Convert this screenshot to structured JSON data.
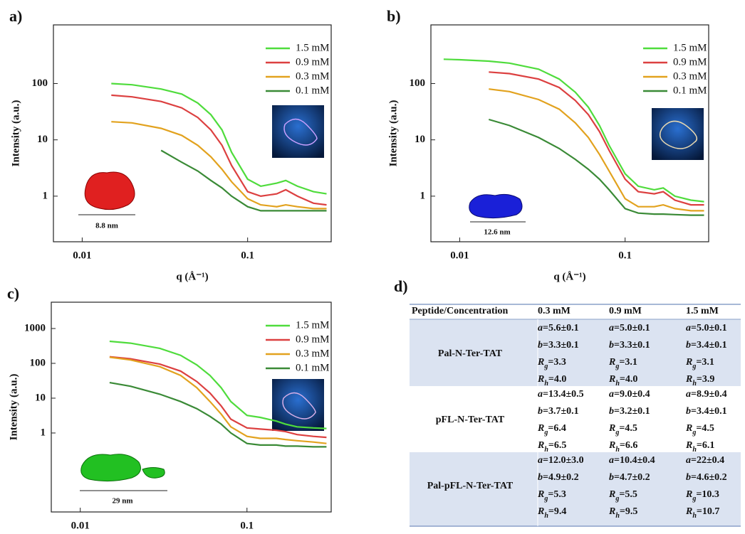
{
  "chart_data": [
    {
      "type": "line",
      "panel_label": "a)",
      "y_label": "Intensity (a.u.)",
      "x_label": "q (Å⁻¹)",
      "xscale": "log",
      "yscale": "log",
      "xlim": [
        0.0067,
        0.32
      ],
      "ylim": [
        0.155,
        1100
      ],
      "xticks": [
        0.01,
        0.1
      ],
      "yticks": [
        1,
        10,
        100
      ],
      "legend": "upper right",
      "annotations": [
        "8.8 nm"
      ],
      "x": [
        0.008,
        0.01,
        0.015,
        0.02,
        0.03,
        0.04,
        0.05,
        0.06,
        0.07,
        0.08,
        0.1,
        0.12,
        0.15,
        0.17,
        0.2,
        0.25,
        0.3
      ],
      "series": [
        {
          "name": "1.5 mM",
          "color": "#4fdc3c",
          "values": [
            null,
            null,
            100,
            95,
            80,
            65,
            45,
            28,
            15,
            6,
            2,
            1.5,
            1.7,
            1.9,
            1.5,
            1.2,
            1.1
          ]
        },
        {
          "name": "0.9 mM",
          "color": "#dc4040",
          "values": [
            null,
            null,
            62,
            58,
            48,
            37,
            25,
            15,
            8,
            3.5,
            1.2,
            1.0,
            1.1,
            1.3,
            1.0,
            0.75,
            0.7
          ]
        },
        {
          "name": "0.3 mM",
          "color": "#e2a21e",
          "values": [
            null,
            null,
            21,
            20,
            16,
            12,
            8,
            5,
            3,
            1.8,
            0.9,
            0.7,
            0.65,
            0.7,
            0.65,
            0.6,
            0.6
          ]
        },
        {
          "name": "0.1 mM",
          "color": "#3a8a36",
          "values": [
            null,
            null,
            null,
            null,
            6.5,
            4,
            2.8,
            1.9,
            1.4,
            1.0,
            0.65,
            0.55,
            0.55,
            0.55,
            0.55,
            0.55,
            0.55
          ]
        }
      ]
    },
    {
      "type": "line",
      "panel_label": "b)",
      "y_label": "Intensity (a.u.)",
      "x_label": "q (Å⁻¹)",
      "xscale": "log",
      "yscale": "log",
      "xlim": [
        0.0067,
        0.32
      ],
      "ylim": [
        0.155,
        1100
      ],
      "xticks": [
        0.01,
        0.1
      ],
      "yticks": [
        1,
        10,
        100
      ],
      "legend": "upper right",
      "annotations": [
        "12.6 nm"
      ],
      "x": [
        0.008,
        0.01,
        0.015,
        0.02,
        0.03,
        0.04,
        0.05,
        0.06,
        0.07,
        0.08,
        0.1,
        0.12,
        0.15,
        0.17,
        0.2,
        0.25,
        0.3
      ],
      "series": [
        {
          "name": "1.5 mM",
          "color": "#4fdc3c",
          "values": [
            270,
            265,
            250,
            230,
            180,
            120,
            70,
            38,
            18,
            8,
            2.5,
            1.5,
            1.3,
            1.4,
            1.0,
            0.85,
            0.8
          ]
        },
        {
          "name": "0.9 mM",
          "color": "#dc4040",
          "values": [
            null,
            null,
            160,
            150,
            120,
            85,
            50,
            28,
            14,
            6.5,
            2.0,
            1.2,
            1.1,
            1.2,
            0.85,
            0.7,
            0.7
          ]
        },
        {
          "name": "0.3 mM",
          "color": "#e2a21e",
          "values": [
            null,
            null,
            80,
            72,
            52,
            35,
            20,
            11,
            5.5,
            2.8,
            0.9,
            0.65,
            0.65,
            0.7,
            0.6,
            0.55,
            0.55
          ]
        },
        {
          "name": "0.1 mM",
          "color": "#3a8a36",
          "values": [
            null,
            null,
            23,
            18,
            11,
            7,
            4.5,
            3,
            2,
            1.3,
            0.6,
            0.5,
            0.48,
            0.48,
            0.47,
            0.46,
            0.46
          ]
        }
      ]
    },
    {
      "type": "line",
      "panel_label": "c)",
      "y_label": "Intensity (a.u.)",
      "xscale": "log",
      "yscale": "log",
      "xlim": [
        0.0067,
        0.32
      ],
      "ylim": [
        0.0054,
        5700
      ],
      "xticks": [
        0.01,
        0.1
      ],
      "yticks": [
        1,
        10,
        100,
        1000
      ],
      "legend": "upper right",
      "annotations": [
        "29 nm"
      ],
      "x": [
        0.008,
        0.01,
        0.015,
        0.02,
        0.03,
        0.04,
        0.05,
        0.06,
        0.07,
        0.08,
        0.1,
        0.12,
        0.15,
        0.17,
        0.2,
        0.25,
        0.3
      ],
      "series": [
        {
          "name": "1.5 mM",
          "color": "#4fdc3c",
          "values": [
            null,
            null,
            430,
            380,
            270,
            170,
            90,
            45,
            20,
            8,
            3.2,
            2.8,
            2.2,
            1.8,
            1.5,
            1.4,
            1.35
          ]
        },
        {
          "name": "0.9 mM",
          "color": "#dc4040",
          "values": [
            null,
            null,
            155,
            135,
            95,
            60,
            30,
            14,
            6,
            2.5,
            1.4,
            1.3,
            1.2,
            1.1,
            0.9,
            0.8,
            0.75
          ]
        },
        {
          "name": "0.3 mM",
          "color": "#e2a21e",
          "values": [
            null,
            null,
            150,
            125,
            80,
            45,
            20,
            8,
            3.5,
            1.5,
            0.8,
            0.7,
            0.7,
            0.65,
            0.6,
            0.55,
            0.5
          ]
        },
        {
          "name": "0.1 mM",
          "color": "#3a8a36",
          "values": [
            null,
            null,
            28,
            22,
            13,
            8,
            5,
            3,
            1.8,
            1.0,
            0.5,
            0.45,
            0.45,
            0.42,
            0.42,
            0.4,
            0.4
          ]
        }
      ]
    }
  ],
  "table": {
    "panel_label": "d)",
    "header": [
      "Peptide/Concentration",
      "0.3 mM",
      "0.9 mM",
      "1.5 mM"
    ],
    "rows": [
      {
        "name": "Pal-N-Ter-TAT",
        "cells": [
          [
            "a=5.6±0.1",
            "b=3.3±0.1",
            "Rg=3.3",
            "Rh=4.0"
          ],
          [
            "a=5.0±0.1",
            "b=3.3±0.1",
            "Rg=3.1",
            "Rh=4.0"
          ],
          [
            "a=5.0±0.1",
            "b=3.4±0.1",
            "Rg=3.1",
            "Rh=3.9"
          ]
        ]
      },
      {
        "name": "pFL-N-Ter-TAT",
        "cells": [
          [
            "a=13.4±0.5",
            "b=3.7±0.1",
            "Rg=6.4",
            "Rh=6.5"
          ],
          [
            "a=9.0±0.4",
            "b=3.2±0.1",
            "Rg=4.5",
            "Rh=6.6"
          ],
          [
            "a=8.9±0.4",
            "b=3.4±0.1",
            "Rg=4.5",
            "Rh=6.1"
          ]
        ]
      },
      {
        "name": "Pal-pFL-N-Ter-TAT",
        "cells": [
          [
            "a=12.0±3.0",
            "b=4.9±0.2",
            "Rg=5.3",
            "Rh=9.4"
          ],
          [
            "a=10.4±0.4",
            "b=4.7±0.2",
            "Rg=5.5",
            "Rh=9.5"
          ],
          [
            "a=22±0.4",
            "b=4.6±0.2",
            "Rg=10.3",
            "Rh=10.7"
          ]
        ]
      }
    ]
  }
}
